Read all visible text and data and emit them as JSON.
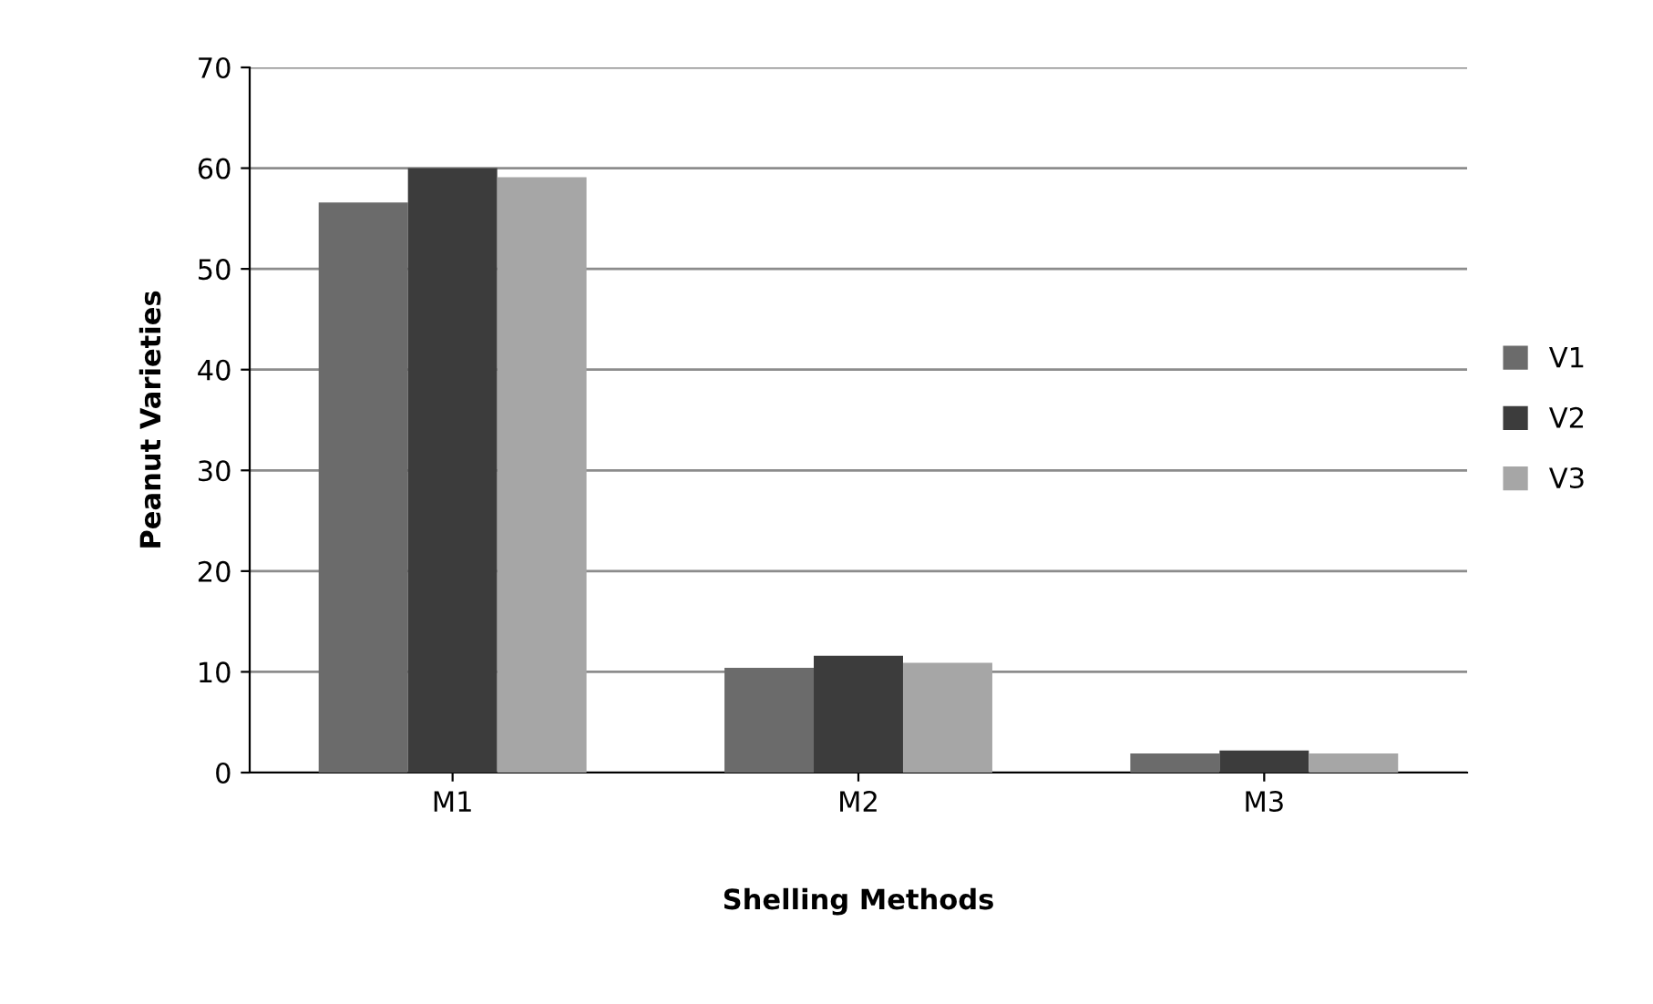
{
  "chart_data": {
    "type": "bar",
    "xlabel": "Shelling Methods",
    "ylabel": "Peanut Varieties",
    "categories": [
      "M1",
      "M2",
      "M3"
    ],
    "series": [
      {
        "name": "V1",
        "color": "#6b6b6b",
        "values": [
          56.6,
          10.4,
          1.9
        ]
      },
      {
        "name": "V2",
        "color": "#3c3c3c",
        "values": [
          60,
          11.6,
          2.2
        ]
      },
      {
        "name": "V3",
        "color": "#a6a6a6",
        "values": [
          59.1,
          10.9,
          1.9
        ]
      }
    ],
    "ylim": [
      0,
      70
    ],
    "yticks": [
      0,
      10,
      20,
      30,
      40,
      50,
      60,
      70
    ],
    "grid": "y",
    "legend": "right"
  }
}
